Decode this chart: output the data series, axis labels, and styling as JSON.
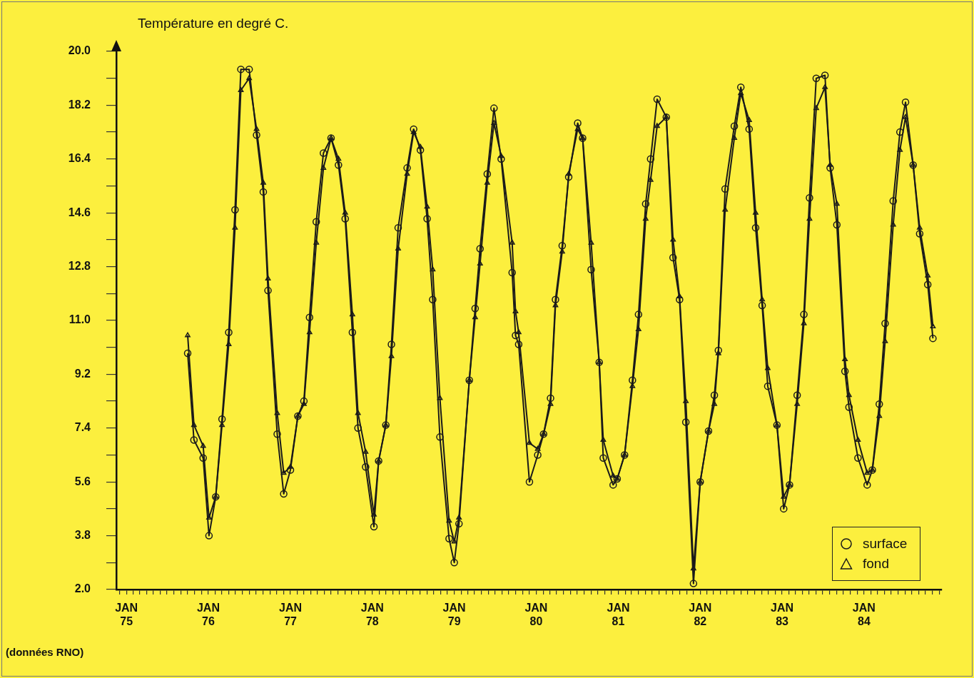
{
  "chart_data": {
    "type": "line",
    "ylabel": "Température en degré C.",
    "annotations": [
      "(données RNO)"
    ],
    "x": [
      "1975-10-01",
      "1975-10-29",
      "1975-12-09",
      "1976-01-04",
      "1976-02-03",
      "1976-03-02",
      "1976-04-01",
      "1976-04-29",
      "1976-05-25",
      "1976-07-01",
      "1976-08-03",
      "1976-09-02",
      "1976-09-23",
      "1976-11-03",
      "1976-12-02",
      "1977-01-01",
      "1977-02-03",
      "1977-03-02",
      "1977-03-27",
      "1977-04-26",
      "1977-05-28",
      "1977-07-01",
      "1977-08-03",
      "1977-09-02",
      "1977-10-04",
      "1977-10-29",
      "1977-12-02",
      "1978-01-08",
      "1978-01-29",
      "1978-03-02",
      "1978-03-27",
      "1978-04-26",
      "1978-06-05",
      "1978-07-04",
      "1978-08-03",
      "1978-09-02",
      "1978-09-27",
      "1978-10-29",
      "1978-12-09",
      "1979-01-01",
      "1979-01-22",
      "1979-03-09",
      "1979-04-04",
      "1979-04-26",
      "1979-05-28",
      "1979-06-27",
      "1979-07-29",
      "1979-09-16",
      "1979-10-01",
      "1979-10-15",
      "1979-12-02",
      "1980-01-08",
      "1980-02-03",
      "1980-03-05",
      "1980-03-27",
      "1980-04-26",
      "1980-05-25",
      "1980-07-04",
      "1980-07-26",
      "1980-09-02",
      "1980-10-08",
      "1980-10-26",
      "1980-12-09",
      "1980-12-27",
      "1981-01-29",
      "1981-03-05",
      "1981-04-01",
      "1981-05-03",
      "1981-05-25",
      "1981-06-23",
      "1981-08-03",
      "1981-09-02",
      "1981-10-01",
      "1981-10-29",
      "1981-12-02",
      "1982-01-01",
      "1982-02-07",
      "1982-03-05",
      "1982-03-23",
      "1982-04-22",
      "1982-06-02",
      "1982-07-01",
      "1982-08-07",
      "1982-09-05",
      "1982-10-04",
      "1982-10-29",
      "1982-12-09",
      "1983-01-08",
      "1983-02-03",
      "1983-03-09",
      "1983-04-08",
      "1983-05-03",
      "1983-06-02",
      "1983-07-11",
      "1983-08-03",
      "1983-09-02",
      "1983-10-08",
      "1983-10-26",
      "1983-12-05",
      "1984-01-15",
      "1984-02-07",
      "1984-03-09",
      "1984-04-04",
      "1984-05-10",
      "1984-06-09",
      "1984-07-04",
      "1984-08-07",
      "1984-09-05",
      "1984-10-11",
      "1984-11-03"
    ],
    "series": [
      {
        "name": "surface",
        "color": "#1a1a1a",
        "marker": "circle",
        "values": [
          9.9,
          7.0,
          6.4,
          3.8,
          5.1,
          7.7,
          10.6,
          14.7,
          19.4,
          19.4,
          17.2,
          15.3,
          12.0,
          7.2,
          5.2,
          6.0,
          7.8,
          8.3,
          11.1,
          14.3,
          16.6,
          17.1,
          16.2,
          14.4,
          10.6,
          7.4,
          6.1,
          4.1,
          6.3,
          7.5,
          10.2,
          14.1,
          16.1,
          17.4,
          16.7,
          14.4,
          11.7,
          7.1,
          3.7,
          2.9,
          4.2,
          9.0,
          11.4,
          13.4,
          15.9,
          18.1,
          16.4,
          12.6,
          10.5,
          10.2,
          5.6,
          6.5,
          7.2,
          8.4,
          11.7,
          13.5,
          15.8,
          17.6,
          17.1,
          12.7,
          9.6,
          6.4,
          5.5,
          5.7,
          6.5,
          9.0,
          11.2,
          14.9,
          16.4,
          18.4,
          17.8,
          13.1,
          11.7,
          7.6,
          2.2,
          5.6,
          7.3,
          8.5,
          10.0,
          15.4,
          17.5,
          18.8,
          17.4,
          14.1,
          11.5,
          8.8,
          7.5,
          4.7,
          5.5,
          8.5,
          11.2,
          15.1,
          19.1,
          19.2,
          16.1,
          14.2,
          9.3,
          8.1,
          6.4,
          5.5,
          6.0,
          8.2,
          10.9,
          15.0,
          17.3,
          18.3,
          16.2,
          13.9,
          12.2,
          10.4
        ]
      },
      {
        "name": "fond",
        "color": "#1a1a1a",
        "marker": "triangle",
        "values": [
          10.5,
          7.5,
          6.8,
          4.4,
          5.1,
          7.5,
          10.2,
          14.1,
          18.7,
          19.1,
          17.4,
          15.6,
          12.4,
          7.9,
          5.9,
          6.1,
          7.8,
          8.2,
          10.6,
          13.6,
          16.1,
          17.1,
          16.4,
          14.6,
          11.2,
          7.9,
          6.6,
          4.5,
          6.3,
          7.5,
          9.8,
          13.4,
          15.9,
          17.3,
          16.8,
          14.8,
          12.7,
          8.4,
          4.3,
          3.6,
          4.4,
          9.0,
          11.1,
          12.9,
          15.6,
          17.6,
          16.5,
          13.6,
          11.3,
          10.6,
          6.9,
          6.7,
          7.2,
          8.2,
          11.5,
          13.3,
          15.9,
          17.4,
          17.1,
          13.6,
          9.6,
          7.0,
          5.8,
          5.7,
          6.5,
          8.8,
          10.7,
          14.4,
          15.7,
          17.5,
          17.8,
          13.7,
          11.8,
          8.3,
          2.7,
          5.6,
          7.3,
          8.2,
          9.9,
          14.7,
          17.1,
          18.6,
          17.7,
          14.6,
          11.7,
          9.4,
          7.5,
          5.1,
          5.5,
          8.2,
          10.9,
          14.4,
          18.1,
          18.8,
          16.2,
          14.9,
          9.7,
          8.5,
          7.0,
          5.9,
          6.0,
          7.8,
          10.3,
          14.2,
          16.7,
          17.8,
          16.2,
          14.1,
          12.5,
          10.8
        ]
      }
    ],
    "xlim": [
      "1974-11-17",
      "1984-12-13"
    ],
    "xticks": [
      {
        "value": "1974-12",
        "label": null
      },
      {
        "value": "1975-01",
        "label": "JAN 75"
      },
      {
        "value": "1975-02",
        "label": null
      },
      {
        "value": "1975-03",
        "label": null
      },
      {
        "value": "1975-04",
        "label": null
      },
      {
        "value": "1975-05",
        "label": null
      },
      {
        "value": "1975-06",
        "label": null
      },
      {
        "value": "1975-07",
        "label": null
      },
      {
        "value": "1975-08",
        "label": null
      },
      {
        "value": "1975-09",
        "label": null
      },
      {
        "value": "1975-10",
        "label": null
      },
      {
        "value": "1975-11",
        "label": null
      },
      {
        "value": "1975-12",
        "label": null
      },
      {
        "value": "1976-01",
        "label": "JAN 76"
      },
      {
        "value": "1976-02",
        "label": null
      },
      {
        "value": "1976-03",
        "label": null
      },
      {
        "value": "1976-04",
        "label": null
      },
      {
        "value": "1976-05",
        "label": null
      },
      {
        "value": "1976-06",
        "label": null
      },
      {
        "value": "1976-07",
        "label": null
      },
      {
        "value": "1976-08",
        "label": null
      },
      {
        "value": "1976-09",
        "label": null
      },
      {
        "value": "1976-10",
        "label": null
      },
      {
        "value": "1976-11",
        "label": null
      },
      {
        "value": "1976-12",
        "label": null
      },
      {
        "value": "1977-01",
        "label": "JAN 77"
      },
      {
        "value": "1977-02",
        "label": null
      },
      {
        "value": "1977-03",
        "label": null
      },
      {
        "value": "1977-04",
        "label": null
      },
      {
        "value": "1977-05",
        "label": null
      },
      {
        "value": "1977-06",
        "label": null
      },
      {
        "value": "1977-07",
        "label": null
      },
      {
        "value": "1977-08",
        "label": null
      },
      {
        "value": "1977-09",
        "label": null
      },
      {
        "value": "1977-10",
        "label": null
      },
      {
        "value": "1977-11",
        "label": null
      },
      {
        "value": "1977-12",
        "label": null
      },
      {
        "value": "1978-01",
        "label": "JAN 78"
      },
      {
        "value": "1978-02",
        "label": null
      },
      {
        "value": "1978-03",
        "label": null
      },
      {
        "value": "1978-04",
        "label": null
      },
      {
        "value": "1978-05",
        "label": null
      },
      {
        "value": "1978-06",
        "label": null
      },
      {
        "value": "1978-07",
        "label": null
      },
      {
        "value": "1978-08",
        "label": null
      },
      {
        "value": "1978-09",
        "label": null
      },
      {
        "value": "1978-10",
        "label": null
      },
      {
        "value": "1978-11",
        "label": null
      },
      {
        "value": "1978-12",
        "label": null
      },
      {
        "value": "1979-01",
        "label": "JAN 79"
      },
      {
        "value": "1979-02",
        "label": null
      },
      {
        "value": "1979-03",
        "label": null
      },
      {
        "value": "1979-04",
        "label": null
      },
      {
        "value": "1979-05",
        "label": null
      },
      {
        "value": "1979-06",
        "label": null
      },
      {
        "value": "1979-07",
        "label": null
      },
      {
        "value": "1979-08",
        "label": null
      },
      {
        "value": "1979-09",
        "label": null
      },
      {
        "value": "1979-10",
        "label": null
      },
      {
        "value": "1979-11",
        "label": null
      },
      {
        "value": "1979-12",
        "label": null
      },
      {
        "value": "1980-01",
        "label": "JAN 80"
      },
      {
        "value": "1980-02",
        "label": null
      },
      {
        "value": "1980-03",
        "label": null
      },
      {
        "value": "1980-04",
        "label": null
      },
      {
        "value": "1980-05",
        "label": null
      },
      {
        "value": "1980-06",
        "label": null
      },
      {
        "value": "1980-07",
        "label": null
      },
      {
        "value": "1980-08",
        "label": null
      },
      {
        "value": "1980-09",
        "label": null
      },
      {
        "value": "1980-10",
        "label": null
      },
      {
        "value": "1980-11",
        "label": null
      },
      {
        "value": "1980-12",
        "label": null
      },
      {
        "value": "1981-01",
        "label": "JAN 81"
      },
      {
        "value": "1981-02",
        "label": null
      },
      {
        "value": "1981-03",
        "label": null
      },
      {
        "value": "1981-04",
        "label": null
      },
      {
        "value": "1981-05",
        "label": null
      },
      {
        "value": "1981-06",
        "label": null
      },
      {
        "value": "1981-07",
        "label": null
      },
      {
        "value": "1981-08",
        "label": null
      },
      {
        "value": "1981-09",
        "label": null
      },
      {
        "value": "1981-10",
        "label": null
      },
      {
        "value": "1981-11",
        "label": null
      },
      {
        "value": "1981-12",
        "label": null
      },
      {
        "value": "1982-01",
        "label": "JAN 82"
      },
      {
        "value": "1982-02",
        "label": null
      },
      {
        "value": "1982-03",
        "label": null
      },
      {
        "value": "1982-04",
        "label": null
      },
      {
        "value": "1982-05",
        "label": null
      },
      {
        "value": "1982-06",
        "label": null
      },
      {
        "value": "1982-07",
        "label": null
      },
      {
        "value": "1982-08",
        "label": null
      },
      {
        "value": "1982-09",
        "label": null
      },
      {
        "value": "1982-10",
        "label": null
      },
      {
        "value": "1982-11",
        "label": null
      },
      {
        "value": "1982-12",
        "label": null
      },
      {
        "value": "1983-01",
        "label": "JAN 83"
      },
      {
        "value": "1983-02",
        "label": null
      },
      {
        "value": "1983-03",
        "label": null
      },
      {
        "value": "1983-04",
        "label": null
      },
      {
        "value": "1983-05",
        "label": null
      },
      {
        "value": "1983-06",
        "label": null
      },
      {
        "value": "1983-07",
        "label": null
      },
      {
        "value": "1983-08",
        "label": null
      },
      {
        "value": "1983-09",
        "label": null
      },
      {
        "value": "1983-10",
        "label": null
      },
      {
        "value": "1983-11",
        "label": null
      },
      {
        "value": "1983-12",
        "label": null
      },
      {
        "value": "1984-01",
        "label": "JAN 84"
      },
      {
        "value": "1984-02",
        "label": null
      },
      {
        "value": "1984-03",
        "label": null
      },
      {
        "value": "1984-04",
        "label": null
      },
      {
        "value": "1984-05",
        "label": null
      },
      {
        "value": "1984-06",
        "label": null
      },
      {
        "value": "1984-07",
        "label": null
      },
      {
        "value": "1984-08",
        "label": null
      },
      {
        "value": "1984-09",
        "label": null
      },
      {
        "value": "1984-10",
        "label": null
      },
      {
        "value": "1984-11",
        "label": null
      },
      {
        "value": "1984-12",
        "label": null
      }
    ],
    "ylim": [
      2,
      20
    ],
    "yticks": [
      {
        "value": 2,
        "label": "2.0"
      },
      {
        "value": 2.9,
        "label": null
      },
      {
        "value": 3.8,
        "label": "3.8"
      },
      {
        "value": 4.7,
        "label": null
      },
      {
        "value": 5.6,
        "label": "5.6"
      },
      {
        "value": 6.5,
        "label": null
      },
      {
        "value": 7.4,
        "label": "7.4"
      },
      {
        "value": 8.3,
        "label": null
      },
      {
        "value": 9.2,
        "label": "9.2"
      },
      {
        "value": 10.1,
        "label": null
      },
      {
        "value": 11,
        "label": "11.0"
      },
      {
        "value": 11.9,
        "label": null
      },
      {
        "value": 12.8,
        "label": "12.8"
      },
      {
        "value": 13.7,
        "label": null
      },
      {
        "value": 14.6,
        "label": "14.6"
      },
      {
        "value": 15.5,
        "label": null
      },
      {
        "value": 16.4,
        "label": "16.4"
      },
      {
        "value": 17.3,
        "label": null
      },
      {
        "value": 18.2,
        "label": "18.2"
      },
      {
        "value": 19.1,
        "label": null
      },
      {
        "value": 20,
        "label": "20.0"
      }
    ],
    "grid": false,
    "legend": "bottom right",
    "line_style": "solid"
  }
}
